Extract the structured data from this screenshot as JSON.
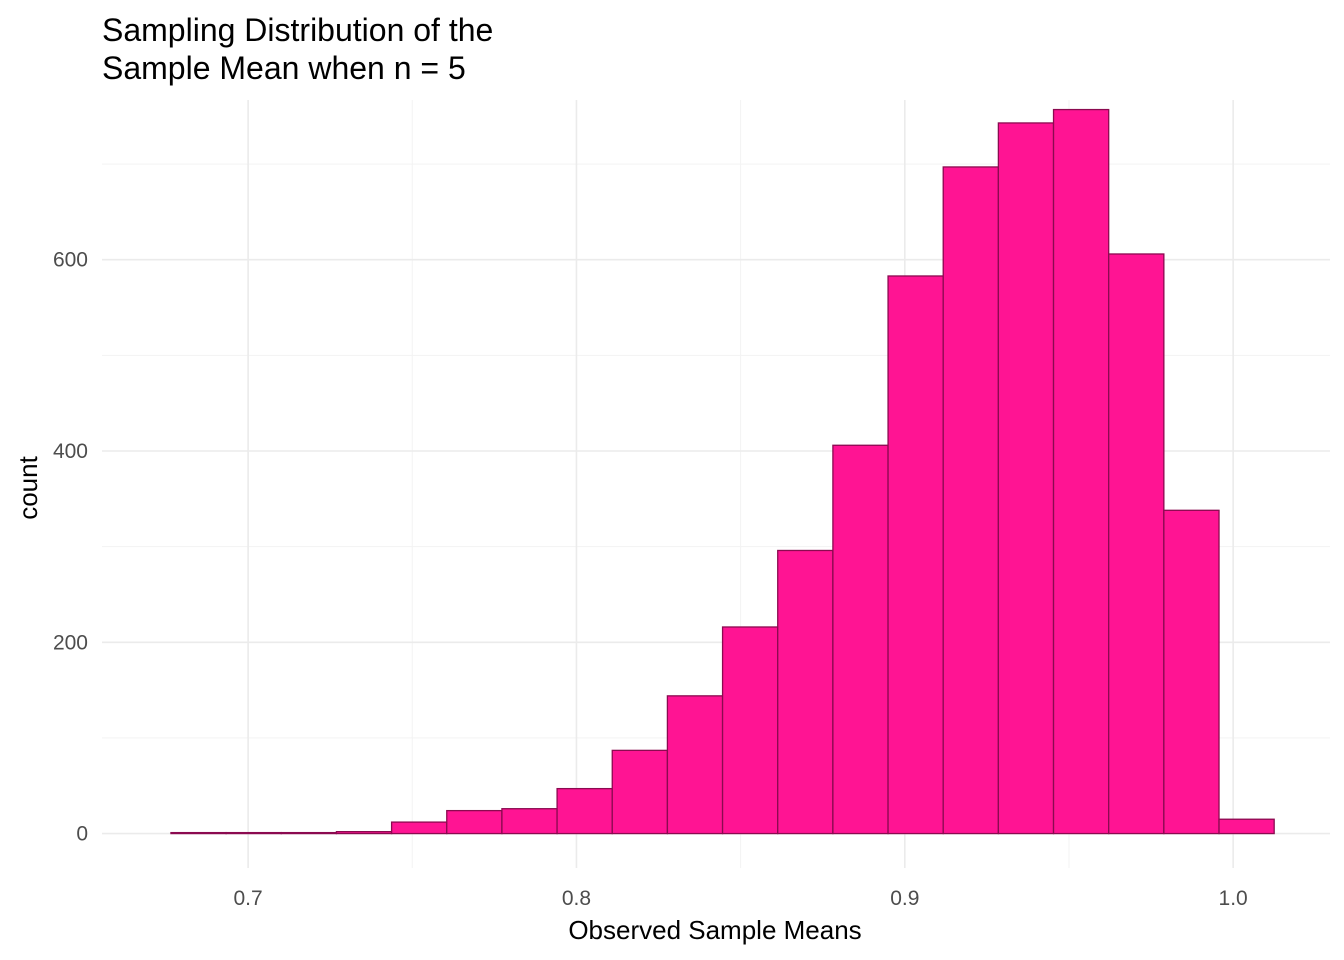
{
  "chart_data": {
    "type": "bar",
    "title_lines": [
      "Sampling Distribution of the",
      "Sample Mean when n = 5"
    ],
    "xlabel": "Observed Sample Means",
    "ylabel": "count",
    "xlim": [
      0.6555,
      1.0295
    ],
    "ylim": [
      -36,
      767
    ],
    "x_ticks": [
      0.7,
      0.8,
      0.9,
      1.0
    ],
    "x_tick_labels": [
      "0.7",
      "0.8",
      "0.9",
      "1.0"
    ],
    "y_ticks": [
      0,
      200,
      400,
      600
    ],
    "y_tick_labels": [
      "0",
      "200",
      "400",
      "600"
    ],
    "bin_width": 0.0168,
    "bins": [
      {
        "x0": 0.6765,
        "x1": 0.6933,
        "count": 1
      },
      {
        "x0": 0.6933,
        "x1": 0.7101,
        "count": 1
      },
      {
        "x0": 0.7101,
        "x1": 0.7269,
        "count": 1
      },
      {
        "x0": 0.7269,
        "x1": 0.7437,
        "count": 2
      },
      {
        "x0": 0.7437,
        "x1": 0.7605,
        "count": 12
      },
      {
        "x0": 0.7605,
        "x1": 0.7773,
        "count": 24
      },
      {
        "x0": 0.7773,
        "x1": 0.7941,
        "count": 26
      },
      {
        "x0": 0.7941,
        "x1": 0.8109,
        "count": 47
      },
      {
        "x0": 0.8109,
        "x1": 0.8277,
        "count": 87
      },
      {
        "x0": 0.8277,
        "x1": 0.8445,
        "count": 144
      },
      {
        "x0": 0.8445,
        "x1": 0.8613,
        "count": 216
      },
      {
        "x0": 0.8613,
        "x1": 0.8781,
        "count": 296
      },
      {
        "x0": 0.8781,
        "x1": 0.8949,
        "count": 406
      },
      {
        "x0": 0.8949,
        "x1": 0.9117,
        "count": 583
      },
      {
        "x0": 0.9117,
        "x1": 0.9285,
        "count": 697
      },
      {
        "x0": 0.9285,
        "x1": 0.9453,
        "count": 743
      },
      {
        "x0": 0.9453,
        "x1": 0.9621,
        "count": 757
      },
      {
        "x0": 0.9621,
        "x1": 0.9789,
        "count": 606
      },
      {
        "x0": 0.9789,
        "x1": 0.9957,
        "count": 338
      },
      {
        "x0": 0.9957,
        "x1": 1.0125,
        "count": 15
      }
    ],
    "fill_color": "#FF1493",
    "outline_color": "#8B0A50",
    "grid": true,
    "legend": "none"
  }
}
